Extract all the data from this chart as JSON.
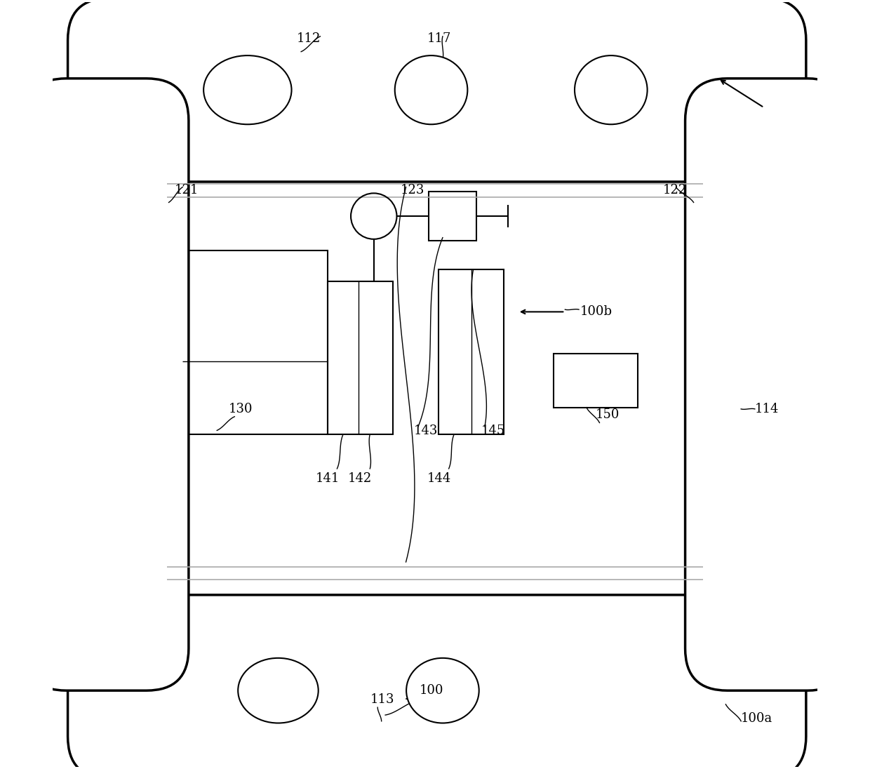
{
  "bg_color": "#ffffff",
  "line_color": "#000000",
  "fig_width": 12.4,
  "fig_height": 10.96
}
